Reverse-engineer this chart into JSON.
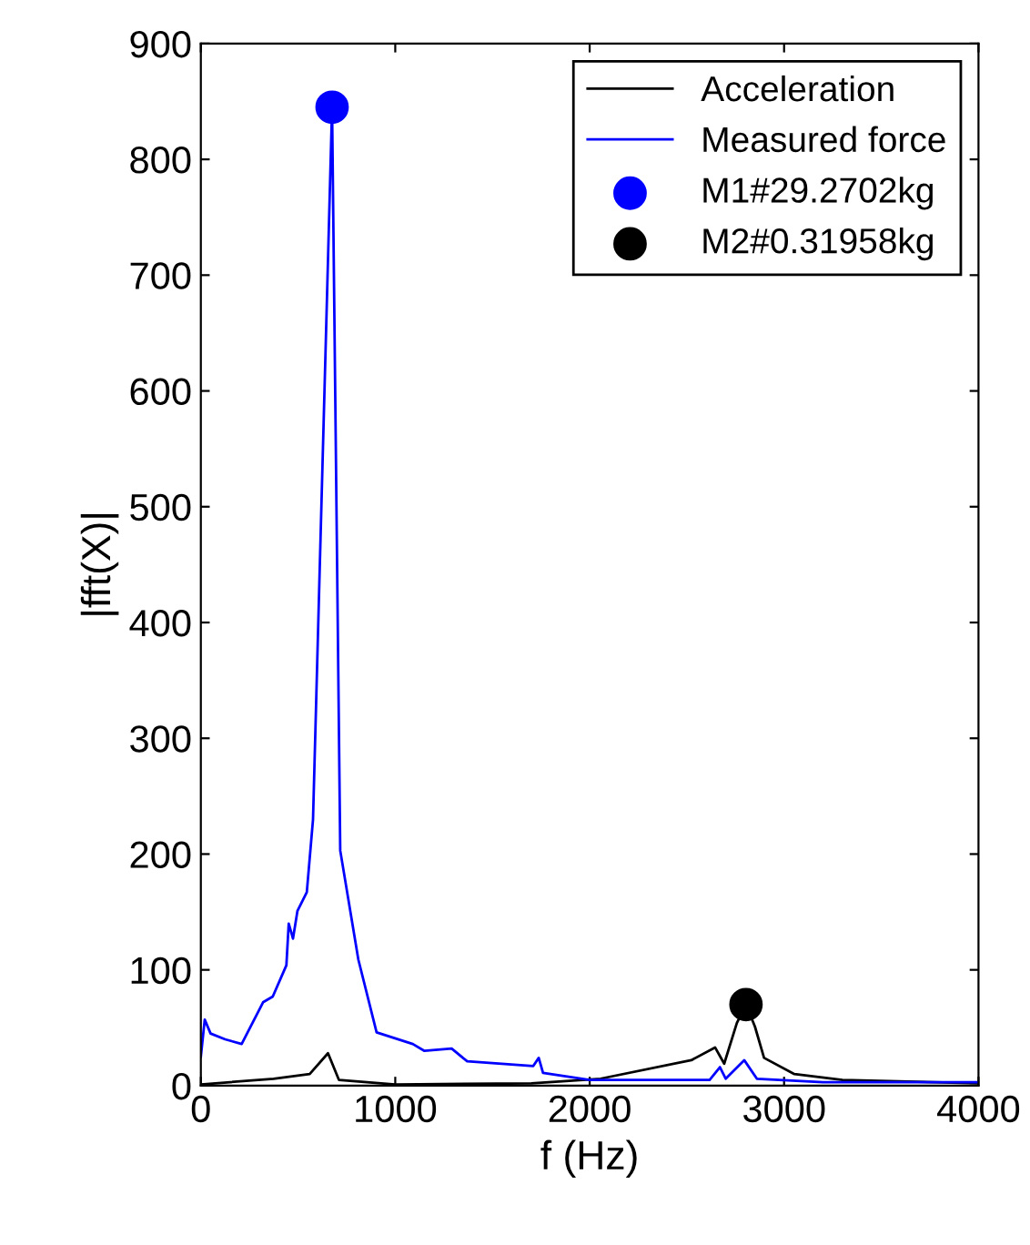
{
  "chart_data": {
    "type": "line",
    "xlabel": "f (Hz)",
    "ylabel": "|fft(X)|",
    "xlim": [
      0,
      4000
    ],
    "xticks": [
      0,
      1000,
      2000,
      3000,
      4000
    ],
    "ylim": [
      0,
      900
    ],
    "yticks": [
      0,
      100,
      200,
      300,
      400,
      500,
      600,
      700,
      800,
      900
    ],
    "grid": false,
    "legend": "top right",
    "series": [
      {
        "name": "Acceleration",
        "color": "#000000",
        "x": [
          0,
          374,
          560,
          654,
          710,
          1000,
          1700,
          2056,
          2523,
          2645,
          2692,
          2757,
          2804,
          2850,
          2897,
          3053,
          3300,
          4000
        ],
        "values": [
          1,
          6,
          10,
          28,
          5,
          1,
          2,
          6,
          22,
          33,
          19,
          54,
          70,
          51,
          24,
          10,
          5,
          2
        ]
      },
      {
        "name": "Measured force",
        "color": "#0000ff",
        "x": [
          0,
          20,
          50,
          125,
          210,
          320,
          370,
          440,
          452,
          474,
          497,
          545,
          577,
          620,
          675,
          717,
          810,
          904,
          1090,
          1150,
          1290,
          1370,
          1710,
          1738,
          1760,
          2000,
          2617,
          2670,
          2700,
          2795,
          2860,
          3200,
          4000
        ],
        "values": [
          25,
          57,
          45,
          40,
          36,
          72,
          77,
          104,
          140,
          127,
          151,
          167,
          230,
          500,
          845,
          203,
          109,
          46,
          36,
          30,
          32,
          21,
          17,
          24,
          11,
          5,
          5,
          16,
          6,
          22,
          6,
          3,
          3
        ]
      },
      {
        "name": "M1#29.2702kg",
        "color": "#0000ff",
        "type": "scatter",
        "marker": "circle",
        "x": [
          675
        ],
        "values": [
          845
        ]
      },
      {
        "name": "M2#0.31958kg",
        "color": "#000000",
        "type": "scatter",
        "marker": "circle",
        "x": [
          2804
        ],
        "values": [
          70
        ]
      }
    ]
  }
}
